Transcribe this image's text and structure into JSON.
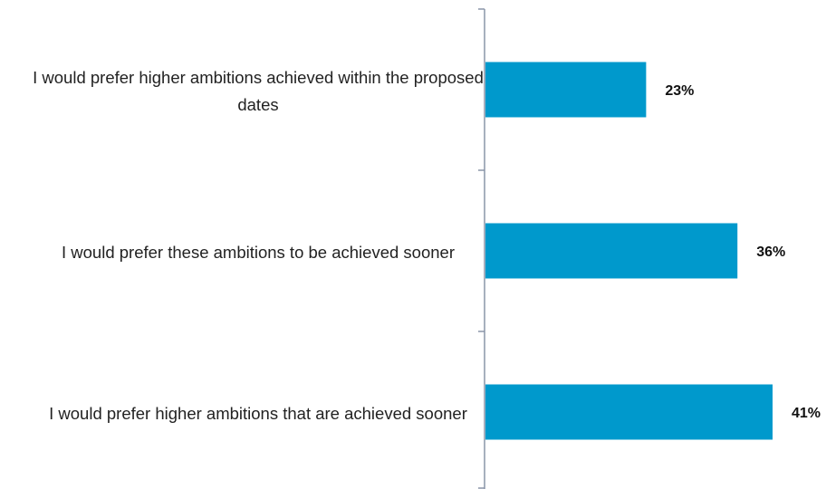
{
  "chart_data": {
    "type": "bar",
    "orientation": "horizontal",
    "categories": [
      "I would prefer higher ambitions achieved within the proposed dates",
      "I would prefer these ambitions to be achieved sooner",
      "I would prefer higher ambitions that are achieved sooner"
    ],
    "values": [
      23,
      36,
      41
    ],
    "value_labels": [
      "23%",
      "36%",
      "41%"
    ],
    "color": "#0099cc"
  }
}
